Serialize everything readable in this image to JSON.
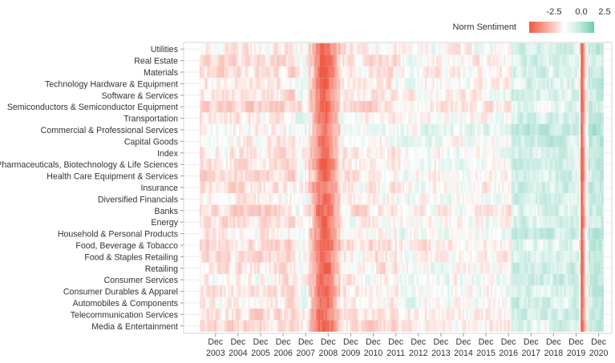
{
  "chart_data": {
    "type": "heatmap",
    "title": "",
    "xlabel": "",
    "ylabel": "",
    "legend": {
      "title": "Norm Sentiment",
      "position": "top-right",
      "ticks": [
        "-2.5",
        "0.0",
        "2.5"
      ],
      "range": [
        -3.5,
        3.0
      ],
      "colors": {
        "negative": "#ef5a46",
        "neutral": "#ffffff",
        "positive": "#6cc9b0"
      }
    },
    "x_axis": {
      "start": "2002-07",
      "end": "2021-07",
      "tick_labels": [
        {
          "line1": "Dec",
          "line2": "2003"
        },
        {
          "line1": "Dec",
          "line2": "2004"
        },
        {
          "line1": "Dec",
          "line2": "2005"
        },
        {
          "line1": "Dec",
          "line2": "2006"
        },
        {
          "line1": "Dec",
          "line2": "2007"
        },
        {
          "line1": "Dec",
          "line2": "2008"
        },
        {
          "line1": "Dec",
          "line2": "2009"
        },
        {
          "line1": "Dec",
          "line2": "2010"
        },
        {
          "line1": "Dec",
          "line2": "2011"
        },
        {
          "line1": "Dec",
          "line2": "2012"
        },
        {
          "line1": "Dec",
          "line2": "2013"
        },
        {
          "line1": "Dec",
          "line2": "2014"
        },
        {
          "line1": "Dec",
          "line2": "2015"
        },
        {
          "line1": "Dec",
          "line2": "2016"
        },
        {
          "line1": "Dec",
          "line2": "2017"
        },
        {
          "line1": "Dec",
          "line2": "2018"
        },
        {
          "line1": "Dec",
          "line2": "2019"
        },
        {
          "line1": "Dec",
          "line2": "2020"
        }
      ],
      "data_start": "2003-04",
      "data_end": "2021-02"
    },
    "categories": [
      "Utilities",
      "Real Estate",
      "Materials",
      "Technology Hardware & Equipment",
      "Software & Services",
      "Semiconductors & Semiconductor Equipment",
      "Transportation",
      "Commercial & Professional Services",
      "Capital Goods",
      "Index",
      "Pharmaceuticals, Biotechnology & Life Sciences",
      "Health Care Equipment & Services",
      "Insurance",
      "Diversified Financials",
      "Banks",
      "Energy",
      "Household & Personal Products",
      "Food, Beverage & Tobacco",
      "Food & Staples Retailing",
      "Retailing",
      "Consumer Services",
      "Consumer Durables & Apparel",
      "Automobiles & Components",
      "Telecommunication Services",
      "Media & Entertainment"
    ],
    "patterns": {
      "early_period": {
        "from": "2003-04",
        "to": "2007-06",
        "mean": -0.3
      },
      "gfc_trough": {
        "from": "2008-01",
        "to": "2009-06",
        "peak": "2008-10",
        "min": -3.0
      },
      "recovery": {
        "from": "2009-07",
        "to": "2011-12",
        "mean": -0.2
      },
      "middle_period": {
        "from": "2012-01",
        "to": "2016-12",
        "mean": 0.0
      },
      "late_period": {
        "from": "2017-01",
        "to": "2020-01",
        "mean": 0.6
      },
      "covid_shock": {
        "from": "2020-02",
        "to": "2020-05",
        "peak": "2020-03",
        "min": -3.2
      },
      "post_covid": {
        "from": "2020-06",
        "to": "2021-02",
        "mean": 0.9
      }
    },
    "grid": true
  }
}
